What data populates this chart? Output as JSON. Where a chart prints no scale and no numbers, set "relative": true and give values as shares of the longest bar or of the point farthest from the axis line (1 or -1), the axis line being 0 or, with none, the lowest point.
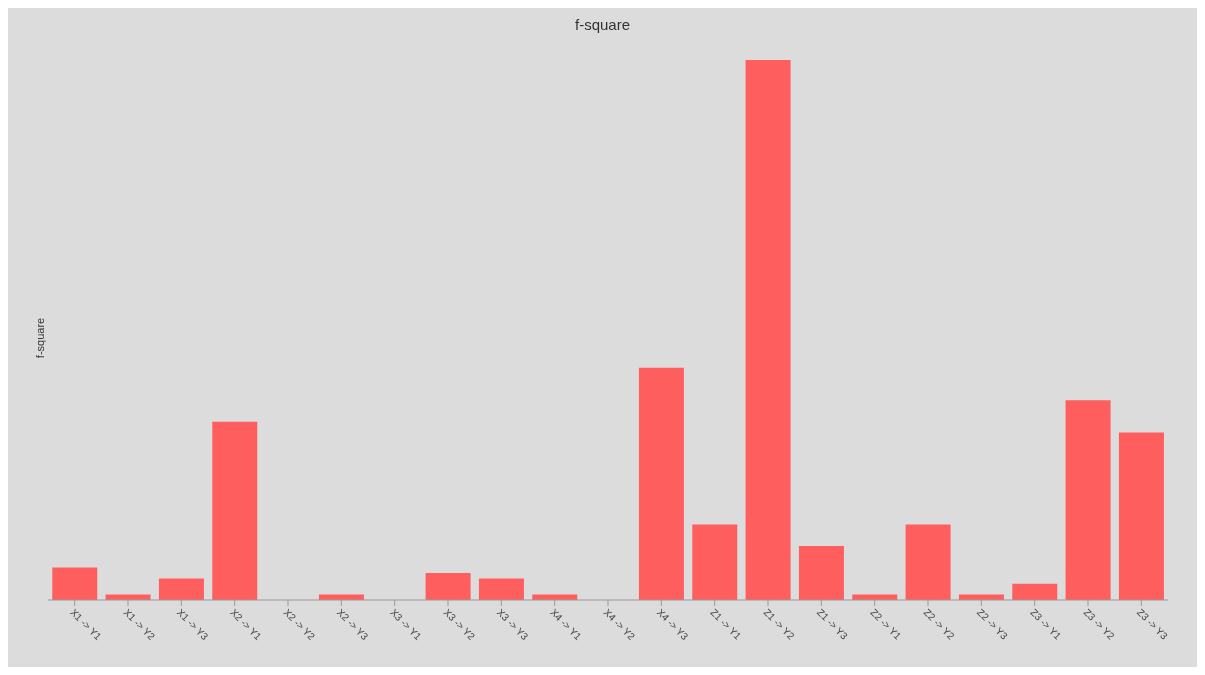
{
  "chart_data": {
    "type": "bar",
    "title": "f-square",
    "ylabel": "f-square",
    "relative": true,
    "categories": [
      "X1 -> Y1",
      "X1 -> Y2",
      "X1 -> Y3",
      "X2 -> Y1",
      "X2 -> Y2",
      "X2 -> Y3",
      "X3 -> Y1",
      "X3 -> Y2",
      "X3 -> Y3",
      "X4 -> Y1",
      "X4 -> Y2",
      "X4 -> Y3",
      "Z1 -> Y1",
      "Z1 -> Y2",
      "Z1 -> Y3",
      "Z2 -> Y1",
      "Z2 -> Y2",
      "Z2 -> Y3",
      "Z3 -> Y1",
      "Z3 -> Y2",
      "Z3 -> Y3"
    ],
    "values": [
      0.06,
      0.01,
      0.04,
      0.33,
      0,
      0.01,
      0,
      0.05,
      0.04,
      0.01,
      0,
      0.43,
      0.14,
      1,
      0.1,
      0.01,
      0.14,
      0.01,
      0.03,
      0.37,
      0.31
    ],
    "color": "#ff5e5e",
    "grid": false,
    "legend": false
  }
}
